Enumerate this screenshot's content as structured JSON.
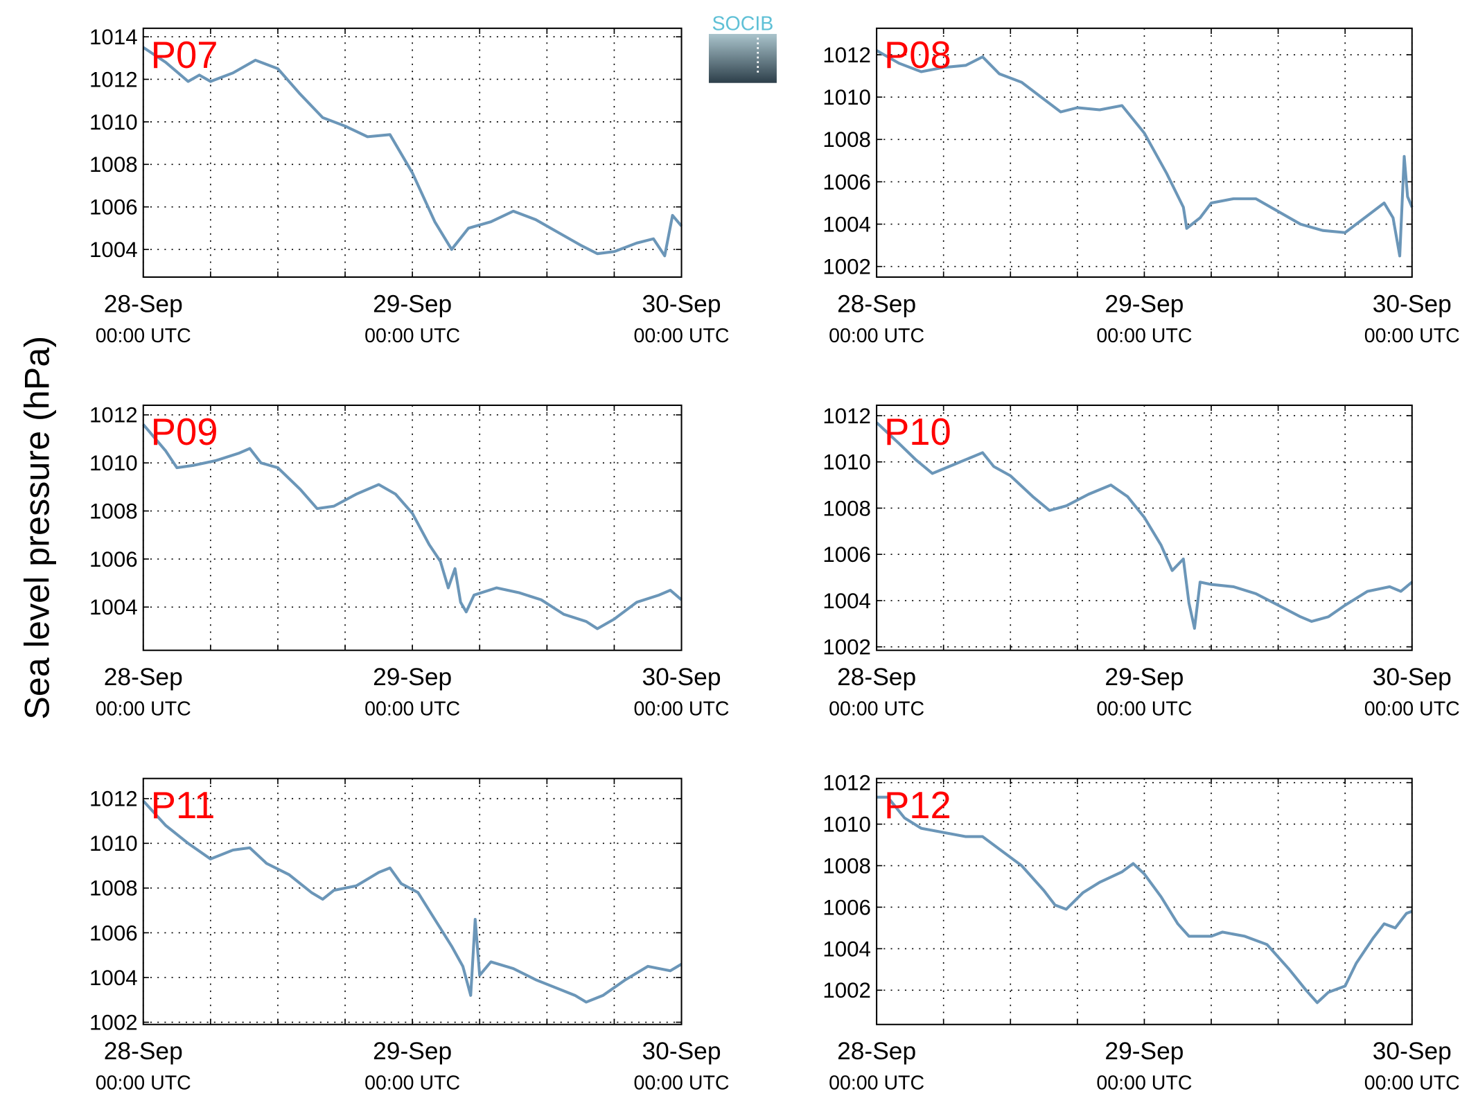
{
  "ylabel": "Sea level pressure (hPa)",
  "logo": "SOCIB",
  "chart_data": [
    {
      "type": "line",
      "title": "P07",
      "color": "#6b96b8",
      "grid": true,
      "x": [
        0,
        2,
        4,
        5,
        6,
        8,
        10,
        12,
        14,
        16,
        18,
        20,
        22,
        24,
        26,
        27.5,
        29,
        31,
        33,
        35,
        37,
        39,
        40.5,
        42,
        44,
        45.5,
        46.5,
        47.2,
        48
      ],
      "values": [
        1013.5,
        1012.8,
        1011.9,
        1012.2,
        1011.9,
        1012.3,
        1012.9,
        1012.5,
        1011.3,
        1010.2,
        1009.8,
        1009.3,
        1009.4,
        1007.6,
        1005.3,
        1004,
        1005,
        1005.3,
        1005.8,
        1005.4,
        1004.8,
        1004.2,
        1003.8,
        1003.9,
        1004.3,
        1004.5,
        1003.7,
        1005.6,
        1005.1
      ],
      "xlim": [
        0,
        48
      ],
      "xticks": [
        {
          "value": 0,
          "label": [
            "28-Sep",
            "00:00 UTC"
          ]
        },
        {
          "value": 24,
          "label": [
            "29-Sep",
            "00:00 UTC"
          ]
        },
        {
          "value": 48,
          "label": [
            "30-Sep",
            "00:00 UTC"
          ]
        }
      ],
      "xminorticks": [
        6,
        12,
        18,
        30,
        36,
        42
      ],
      "ylim": [
        1002.7,
        1014.4
      ],
      "yticks": [
        1004,
        1006,
        1008,
        1010,
        1012,
        1014
      ]
    },
    {
      "type": "line",
      "title": "P08",
      "color": "#6b96b8",
      "grid": true,
      "x": [
        0,
        2,
        4,
        6,
        8,
        9.5,
        11,
        13,
        15,
        16.5,
        18,
        20,
        22,
        24,
        26,
        27.5,
        27.8,
        29,
        30,
        32,
        34,
        36,
        38,
        40,
        42,
        44,
        45.5,
        46.3,
        46.9,
        47.3,
        47.6,
        48
      ],
      "values": [
        1012.2,
        1011.6,
        1011.2,
        1011.4,
        1011.5,
        1011.9,
        1011.1,
        1010.7,
        1009.9,
        1009.3,
        1009.5,
        1009.4,
        1009.6,
        1008.3,
        1006.4,
        1004.8,
        1003.8,
        1004.3,
        1005,
        1005.2,
        1005.2,
        1004.6,
        1004,
        1003.7,
        1003.6,
        1004.4,
        1005,
        1004.3,
        1002.5,
        1007.2,
        1005.3,
        1004.8
      ],
      "xlim": [
        0,
        48
      ],
      "xticks": [
        {
          "value": 0,
          "label": [
            "28-Sep",
            "00:00 UTC"
          ]
        },
        {
          "value": 24,
          "label": [
            "29-Sep",
            "00:00 UTC"
          ]
        },
        {
          "value": 48,
          "label": [
            "30-Sep",
            "00:00 UTC"
          ]
        }
      ],
      "xminorticks": [
        6,
        12,
        18,
        30,
        36,
        42
      ],
      "ylim": [
        1001.5,
        1013.25
      ],
      "yticks": [
        1002,
        1004,
        1006,
        1008,
        1010,
        1012
      ]
    },
    {
      "type": "line",
      "title": "P09",
      "color": "#6b96b8",
      "grid": true,
      "x": [
        0,
        2,
        3,
        4.5,
        6.5,
        8.5,
        9.5,
        10.5,
        12,
        14,
        15.5,
        17,
        19,
        21,
        22.5,
        24,
        25.5,
        26.5,
        27.2,
        27.8,
        28.3,
        28.8,
        29.5,
        31.5,
        33.5,
        35.5,
        37.5,
        39.5,
        40.5,
        42,
        44,
        46,
        47,
        48
      ],
      "values": [
        1011.6,
        1010.5,
        1009.8,
        1009.9,
        1010.1,
        1010.4,
        1010.6,
        1010,
        1009.8,
        1008.9,
        1008.1,
        1008.2,
        1008.7,
        1009.1,
        1008.7,
        1007.9,
        1006.6,
        1005.9,
        1004.8,
        1005.6,
        1004.2,
        1003.8,
        1004.5,
        1004.8,
        1004.6,
        1004.3,
        1003.7,
        1003.4,
        1003.1,
        1003.5,
        1004.2,
        1004.5,
        1004.7,
        1004.3
      ],
      "xlim": [
        0,
        48
      ],
      "xticks": [
        {
          "value": 0,
          "label": [
            "28-Sep",
            "00:00 UTC"
          ]
        },
        {
          "value": 24,
          "label": [
            "29-Sep",
            "00:00 UTC"
          ]
        },
        {
          "value": 48,
          "label": [
            "30-Sep",
            "00:00 UTC"
          ]
        }
      ],
      "xminorticks": [
        6,
        12,
        18,
        30,
        36,
        42
      ],
      "ylim": [
        1002.2,
        1012.4
      ],
      "yticks": [
        1004,
        1006,
        1008,
        1010,
        1012
      ]
    },
    {
      "type": "line",
      "title": "P10",
      "color": "#6b96b8",
      "grid": true,
      "x": [
        0,
        2,
        3.5,
        5,
        7,
        9,
        9.5,
        10.5,
        12,
        14,
        15.5,
        17,
        19,
        21,
        22.5,
        24,
        25.5,
        26.5,
        27.5,
        28,
        28.5,
        29,
        30,
        32,
        34,
        36,
        38,
        39,
        40.5,
        42,
        44,
        46,
        47,
        48
      ],
      "values": [
        1011.7,
        1010.8,
        1010.1,
        1009.5,
        1009.9,
        1010.3,
        1010.4,
        1009.8,
        1009.4,
        1008.5,
        1007.9,
        1008.1,
        1008.6,
        1009,
        1008.5,
        1007.6,
        1006.4,
        1005.3,
        1005.8,
        1003.9,
        1002.8,
        1004.8,
        1004.7,
        1004.6,
        1004.3,
        1003.8,
        1003.3,
        1003.1,
        1003.3,
        1003.8,
        1004.4,
        1004.6,
        1004.4,
        1004.8
      ],
      "xlim": [
        0,
        48
      ],
      "xticks": [
        {
          "value": 0,
          "label": [
            "28-Sep",
            "00:00 UTC"
          ]
        },
        {
          "value": 24,
          "label": [
            "29-Sep",
            "00:00 UTC"
          ]
        },
        {
          "value": 48,
          "label": [
            "30-Sep",
            "00:00 UTC"
          ]
        }
      ],
      "xminorticks": [
        6,
        12,
        18,
        30,
        36,
        42
      ],
      "ylim": [
        1001.85,
        1012.45
      ],
      "yticks": [
        1002,
        1004,
        1006,
        1008,
        1010,
        1012
      ]
    },
    {
      "type": "line",
      "title": "P11",
      "color": "#6b96b8",
      "grid": true,
      "x": [
        0,
        2,
        4,
        6,
        8,
        9.5,
        11,
        13,
        15,
        16,
        17,
        19,
        21,
        22,
        23,
        24.5,
        26,
        27.5,
        28.5,
        29.2,
        29.6,
        30,
        31,
        33,
        35,
        37,
        38.5,
        39.5,
        41,
        43,
        45,
        47,
        48
      ],
      "values": [
        1011.9,
        1010.8,
        1010,
        1009.3,
        1009.7,
        1009.8,
        1009.1,
        1008.6,
        1007.8,
        1007.5,
        1007.9,
        1008.1,
        1008.7,
        1008.9,
        1008.2,
        1007.8,
        1006.6,
        1005.4,
        1004.5,
        1003.2,
        1006.6,
        1004.1,
        1004.7,
        1004.4,
        1003.9,
        1003.5,
        1003.2,
        1002.9,
        1003.2,
        1003.9,
        1004.5,
        1004.3,
        1004.6
      ],
      "xlim": [
        0,
        48
      ],
      "xticks": [
        {
          "value": 0,
          "label": [
            "28-Sep",
            "00:00 UTC"
          ]
        },
        {
          "value": 24,
          "label": [
            "29-Sep",
            "00:00 UTC"
          ]
        },
        {
          "value": 48,
          "label": [
            "30-Sep",
            "00:00 UTC"
          ]
        }
      ],
      "xminorticks": [
        6,
        12,
        18,
        30,
        36,
        42
      ],
      "ylim": [
        1001.9,
        1012.9
      ],
      "yticks": [
        1002,
        1004,
        1006,
        1008,
        1010,
        1012
      ]
    },
    {
      "type": "line",
      "title": "P12",
      "color": "#6b96b8",
      "grid": true,
      "x": [
        0,
        1,
        2.5,
        4,
        6,
        8,
        9.5,
        11,
        13,
        15,
        16,
        17,
        18.5,
        20,
        22,
        23,
        24,
        25.5,
        27,
        28,
        30,
        31,
        33,
        35,
        37,
        38.5,
        39.5,
        40.5,
        42,
        43,
        44.5,
        45.5,
        46.5,
        47.5,
        48
      ],
      "values": [
        1011.3,
        1011.3,
        1010.3,
        1009.8,
        1009.6,
        1009.4,
        1009.4,
        1008.8,
        1008,
        1006.8,
        1006.1,
        1005.9,
        1006.7,
        1007.2,
        1007.7,
        1008.1,
        1007.6,
        1006.5,
        1005.2,
        1004.6,
        1004.6,
        1004.8,
        1004.6,
        1004.2,
        1003,
        1002,
        1001.4,
        1001.9,
        1002.2,
        1003.3,
        1004.5,
        1005.2,
        1005,
        1005.7,
        1005.8
      ],
      "xlim": [
        0,
        48
      ],
      "xticks": [
        {
          "value": 0,
          "label": [
            "28-Sep",
            "00:00 UTC"
          ]
        },
        {
          "value": 24,
          "label": [
            "29-Sep",
            "00:00 UTC"
          ]
        },
        {
          "value": 48,
          "label": [
            "30-Sep",
            "00:00 UTC"
          ]
        }
      ],
      "xminorticks": [
        6,
        12,
        18,
        30,
        36,
        42
      ],
      "ylim": [
        1000.35,
        1012.2
      ],
      "yticks": [
        1002,
        1004,
        1006,
        1008,
        1010,
        1012
      ]
    }
  ]
}
